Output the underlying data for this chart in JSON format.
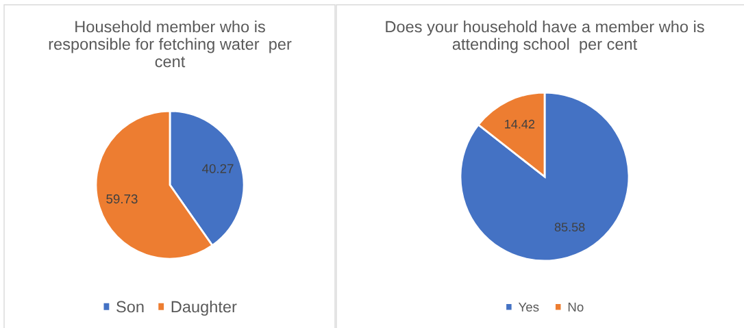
{
  "chart_data": [
    {
      "type": "pie",
      "title": "Household member who is\nresponsible for fetching water  per\ncent",
      "categories": [
        "Son",
        "Daughter"
      ],
      "values": [
        40.27,
        59.73
      ],
      "colors": [
        "#4472c4",
        "#ed7d31"
      ],
      "data_labels": true,
      "legend": "bottom"
    },
    {
      "type": "pie",
      "title": "Does your household have a member who is\nattending school  per cent",
      "categories": [
        "Yes",
        "No"
      ],
      "values": [
        85.58,
        14.42
      ],
      "colors": [
        "#4472c4",
        "#ed7d31"
      ],
      "data_labels": true,
      "legend": "bottom"
    }
  ]
}
